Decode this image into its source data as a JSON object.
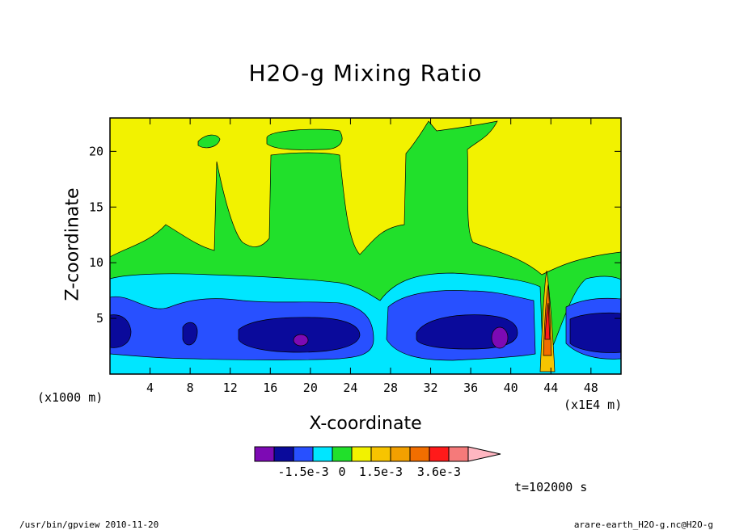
{
  "colors": {
    "purple": "#7d0ab4",
    "navy": "#0a0a9b",
    "blue": "#2850ff",
    "cyan": "#00e6ff",
    "green": "#21e02b",
    "yellow": "#f2f200",
    "gold": "#f7c400",
    "orange1": "#f2a000",
    "orange2": "#f26e00",
    "red": "#ff1a1a",
    "salmon": "#f57a7a",
    "pink": "#ffb6c1"
  },
  "chart_data": {
    "type": "heatmap",
    "title": "H2O-g Mixing Ratio",
    "xlabel": "X-coordinate",
    "ylabel": "Z-coordinate",
    "x_unit_left": "(x1000 m)",
    "x_unit_right": "(x1E4 m)",
    "xlim": [
      0,
      51
    ],
    "ylim": [
      0,
      23
    ],
    "x_ticks": [
      4,
      8,
      12,
      16,
      20,
      24,
      28,
      32,
      36,
      40,
      44,
      48
    ],
    "y_ticks": [
      5,
      10,
      15,
      20
    ],
    "colorbar": {
      "colors": [
        "purple",
        "navy",
        "blue",
        "cyan",
        "green",
        "yellow",
        "gold",
        "orange1",
        "orange2",
        "red",
        "salmon",
        "pink"
      ],
      "labels": [
        "-1.5e-3",
        "0",
        "1.5e-3",
        "3.6e-3"
      ],
      "label_positions": [
        2.5,
        4.5,
        6.5,
        9.5
      ]
    },
    "annotation_time": "t=102000 s"
  },
  "footer": {
    "left": "/usr/bin/gpview  2010-11-20",
    "right": "arare-earth_H2O-g.nc@H2O-g"
  }
}
